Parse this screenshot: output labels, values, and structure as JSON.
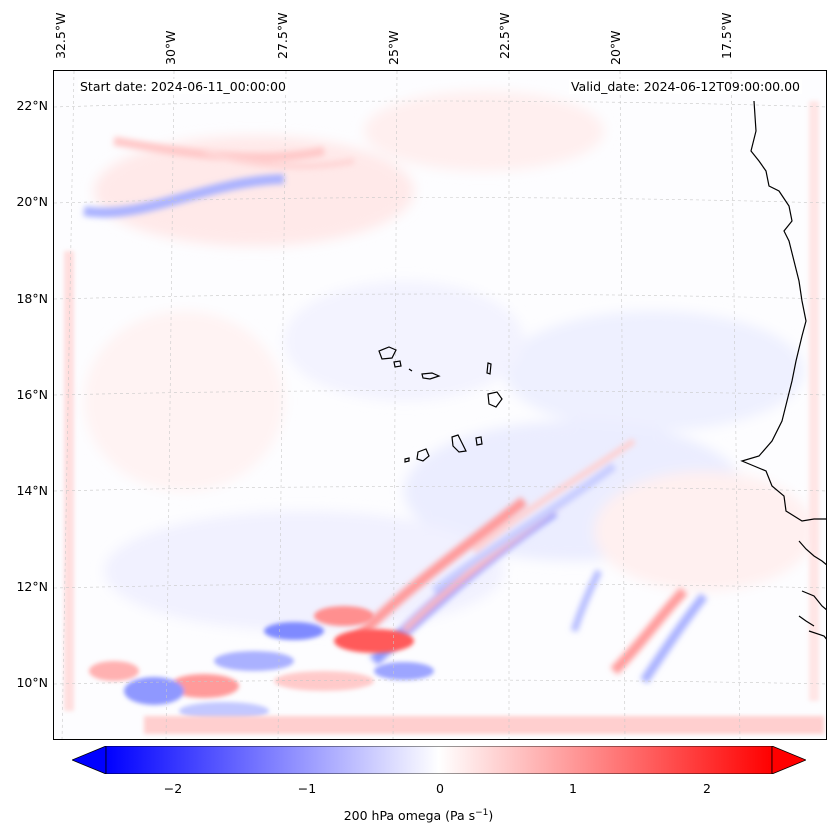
{
  "map": {
    "start_date": "Start date: 2024-06-11_00:00:00",
    "valid_date": "Valid_date: 2024-06-12T09:00:00.00",
    "lon_labels": [
      "32.5°W",
      "30°W",
      "27.5°W",
      "25°W",
      "22.5°W",
      "20°W",
      "17.5°W"
    ],
    "lat_labels": [
      "22°N",
      "20°N",
      "18°N",
      "16°N",
      "14°N",
      "12°N",
      "10°N"
    ],
    "gridlines": true,
    "colors": {
      "negative": "#0000ff",
      "positive": "#ff0000",
      "neutral": "#ffffff",
      "coast": "#000000"
    }
  },
  "colorbar": {
    "label_text": "200 hPa omega (Pa s",
    "label_sup": "−1",
    "label_end": ")",
    "range": [
      -2.7,
      2.7
    ],
    "ticks": [
      {
        "value": -2,
        "label": "−2"
      },
      {
        "value": -1,
        "label": "−1"
      },
      {
        "value": 0,
        "label": "0"
      },
      {
        "value": 1,
        "label": "1"
      },
      {
        "value": 2,
        "label": "2"
      }
    ],
    "extend": "both"
  }
}
